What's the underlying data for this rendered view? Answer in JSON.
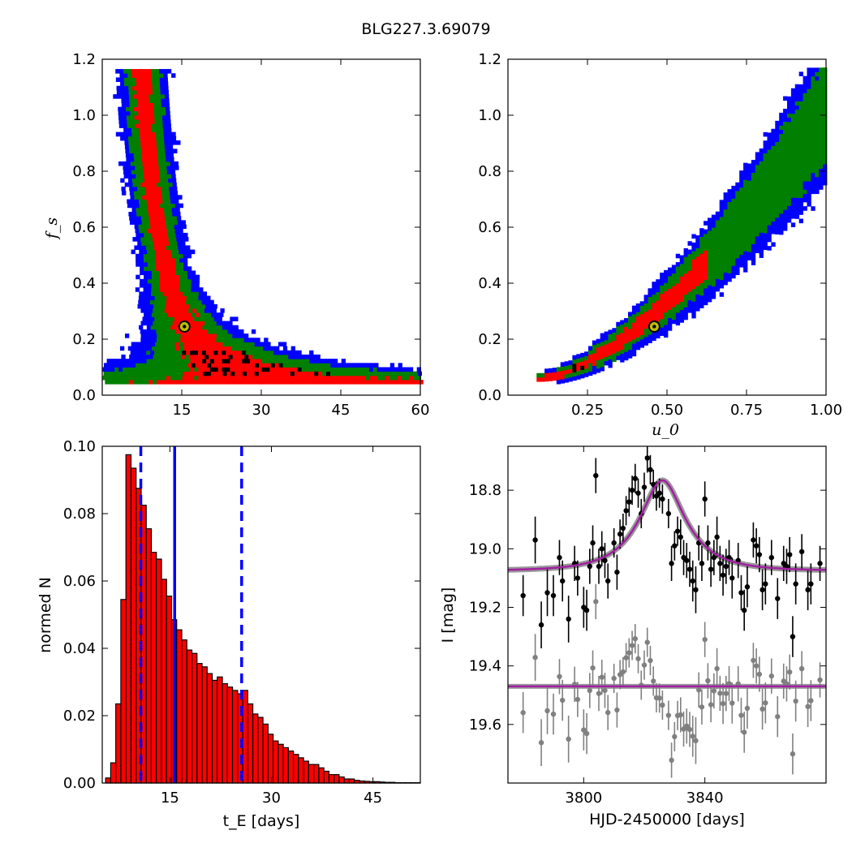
{
  "figure": {
    "title": "BLG227.3.69079"
  },
  "colors": {
    "blue": "#0000ff",
    "green": "#007f00",
    "red": "#ff0000",
    "black": "#000000",
    "marker_fill": "#bfbf00",
    "hist_bar": "#ff0000",
    "hist_edge": "#000000",
    "model_gray": "#808080",
    "model_purple": "#a020a0",
    "data_gray": "#808080"
  },
  "chart_data": [
    {
      "id": "tE_fs",
      "type": "heatmap",
      "title": "",
      "xlabel": "",
      "ylabel": "f_s",
      "xlim": [
        0,
        60
      ],
      "ylim": [
        0,
        1.2
      ],
      "xticks": [
        15,
        30,
        45,
        60
      ],
      "yticks": [
        0.0,
        0.2,
        0.4,
        0.6,
        0.8,
        1.0,
        1.2
      ],
      "curve": "tE*sqrt(fs) ~ 7.8",
      "levels": [
        "blue",
        "green",
        "red",
        "black"
      ],
      "best_fit": {
        "x": 15.5,
        "y": 0.245
      }
    },
    {
      "id": "u0_fs",
      "type": "heatmap",
      "title": "",
      "xlabel": "u_0",
      "ylabel": "",
      "xlim": [
        0,
        1.0
      ],
      "ylim": [
        0,
        1.2
      ],
      "xticks": [
        0.25,
        0.5,
        0.75,
        1.0
      ],
      "yticks": [
        0.0,
        0.2,
        0.4,
        0.6,
        0.8,
        1.0,
        1.2
      ],
      "levels": [
        "blue",
        "green",
        "red",
        "black"
      ],
      "best_fit": {
        "x": 0.46,
        "y": 0.245
      }
    },
    {
      "id": "tE_hist",
      "type": "bar",
      "title": "",
      "xlabel": "t_E [days]",
      "ylabel": "normed N",
      "xlim": [
        5,
        52
      ],
      "ylim": [
        0,
        0.1
      ],
      "xticks": [
        15,
        30,
        45
      ],
      "yticks": [
        0.0,
        0.02,
        0.04,
        0.06,
        0.08,
        0.1
      ],
      "bin_start": 5.5,
      "bin_width": 0.75,
      "values": [
        0.0015,
        0.006,
        0.0235,
        0.0545,
        0.0975,
        0.0935,
        0.0875,
        0.0825,
        0.0755,
        0.0685,
        0.0665,
        0.0605,
        0.0555,
        0.0485,
        0.0455,
        0.0425,
        0.0395,
        0.0385,
        0.0355,
        0.0345,
        0.0325,
        0.0305,
        0.0315,
        0.0295,
        0.0285,
        0.0275,
        0.0265,
        0.0275,
        0.0235,
        0.0205,
        0.0195,
        0.0175,
        0.0145,
        0.0125,
        0.0115,
        0.0105,
        0.0095,
        0.0085,
        0.0075,
        0.0065,
        0.0055,
        0.0055,
        0.0045,
        0.0035,
        0.0025,
        0.0025,
        0.0018,
        0.0012,
        0.0012,
        0.0008,
        0.0006,
        0.0005,
        0.0004,
        0.0004,
        0.0003,
        0.0002,
        0.0002,
        0.0001,
        0.0001,
        0.0001,
        0.0001,
        0.0001
      ],
      "vlines": [
        {
          "x": 10.7,
          "style": "dashed",
          "color": "#0000ff"
        },
        {
          "x": 15.7,
          "style": "solid",
          "color": "#0000ff"
        },
        {
          "x": 25.6,
          "style": "dashed",
          "color": "#0000ff"
        }
      ]
    },
    {
      "id": "lightcurve",
      "type": "scatter",
      "title": "",
      "xlabel": "HJD-2450000 [days]",
      "ylabel": "I [mag]",
      "xlim": [
        3775,
        3880
      ],
      "ylim": [
        19.8,
        18.65
      ],
      "y_inverted": true,
      "xticks": [
        3800,
        3840
      ],
      "yticks": [
        18.8,
        19.0,
        19.2,
        19.4,
        19.6
      ],
      "model": {
        "t0": 3826,
        "tE": 15.5,
        "u0": 0.46,
        "fs": 0.245,
        "baseline": 19.075
      },
      "residual_offset": 19.47,
      "series": [
        {
          "name": "",
          "color": "#000000",
          "points": [
            [
              3780,
              19.16,
              0.07
            ],
            [
              3784,
              18.97,
              0.08
            ],
            [
              3786,
              19.26,
              0.08
            ],
            [
              3788,
              19.15,
              0.08
            ],
            [
              3790,
              19.16,
              0.07
            ],
            [
              3792,
              19.03,
              0.06
            ],
            [
              3793,
              19.11,
              0.07
            ],
            [
              3795,
              19.24,
              0.08
            ],
            [
              3797,
              19.05,
              0.06
            ],
            [
              3798,
              19.1,
              0.06
            ],
            [
              3800,
              19.2,
              0.07
            ],
            [
              3801,
              19.21,
              0.07
            ],
            [
              3802,
              19.06,
              0.06
            ],
            [
              3803,
              18.98,
              0.06
            ],
            [
              3804,
              18.75,
              0.06
            ],
            [
              3805,
              19.06,
              0.06
            ],
            [
              3806,
              19.0,
              0.06
            ],
            [
              3807,
              19.04,
              0.06
            ],
            [
              3808,
              19.11,
              0.06
            ],
            [
              3810,
              18.98,
              0.05
            ],
            [
              3811,
              19.08,
              0.06
            ],
            [
              3812,
              18.95,
              0.05
            ],
            [
              3813,
              18.93,
              0.05
            ],
            [
              3814,
              18.87,
              0.05
            ],
            [
              3815,
              18.84,
              0.05
            ],
            [
              3816,
              18.8,
              0.05
            ],
            [
              3817,
              18.76,
              0.05
            ],
            [
              3818,
              18.81,
              0.05
            ],
            [
              3819,
              18.88,
              0.05
            ],
            [
              3820,
              18.79,
              0.05
            ],
            [
              3821,
              18.69,
              0.05
            ],
            [
              3822,
              18.73,
              0.05
            ],
            [
              3823,
              18.78,
              0.05
            ],
            [
              3824,
              18.82,
              0.05
            ],
            [
              3825,
              18.81,
              0.05
            ],
            [
              3826,
              18.83,
              0.05
            ],
            [
              3828,
              18.88,
              0.05
            ],
            [
              3829,
              19.05,
              0.06
            ],
            [
              3830,
              18.99,
              0.05
            ],
            [
              3831,
              18.94,
              0.05
            ],
            [
              3832,
              18.96,
              0.06
            ],
            [
              3833,
              19.03,
              0.06
            ],
            [
              3834,
              19.04,
              0.06
            ],
            [
              3835,
              19.07,
              0.06
            ],
            [
              3836,
              19.11,
              0.07
            ],
            [
              3837,
              19.14,
              0.08
            ],
            [
              3838,
              18.98,
              0.06
            ],
            [
              3839,
              19.05,
              0.06
            ],
            [
              3840,
              18.83,
              0.06
            ],
            [
              3841,
              18.98,
              0.06
            ],
            [
              3842,
              19.07,
              0.06
            ],
            [
              3843,
              19.03,
              0.06
            ],
            [
              3844,
              18.96,
              0.07
            ],
            [
              3845,
              19.05,
              0.06
            ],
            [
              3846,
              19.09,
              0.07
            ],
            [
              3847,
              19.06,
              0.06
            ],
            [
              3848,
              19.03,
              0.06
            ],
            [
              3849,
              19.1,
              0.07
            ],
            [
              3851,
              19.04,
              0.06
            ],
            [
              3852,
              19.15,
              0.06
            ],
            [
              3853,
              19.21,
              0.07
            ],
            [
              3854,
              19.13,
              0.07
            ],
            [
              3856,
              18.97,
              0.06
            ],
            [
              3857,
              18.99,
              0.06
            ],
            [
              3858,
              19.02,
              0.06
            ],
            [
              3859,
              19.14,
              0.07
            ],
            [
              3860,
              19.12,
              0.07
            ],
            [
              3862,
              19.03,
              0.06
            ],
            [
              3864,
              19.17,
              0.07
            ],
            [
              3866,
              19.05,
              0.06
            ],
            [
              3867,
              19.06,
              0.06
            ],
            [
              3868,
              19.02,
              0.06
            ],
            [
              3869,
              19.3,
              0.07
            ],
            [
              3870,
              19.12,
              0.07
            ],
            [
              3872,
              19.01,
              0.06
            ],
            [
              3874,
              19.14,
              0.07
            ],
            [
              3875,
              19.12,
              0.07
            ],
            [
              3878,
              19.05,
              0.06
            ]
          ]
        }
      ]
    }
  ]
}
